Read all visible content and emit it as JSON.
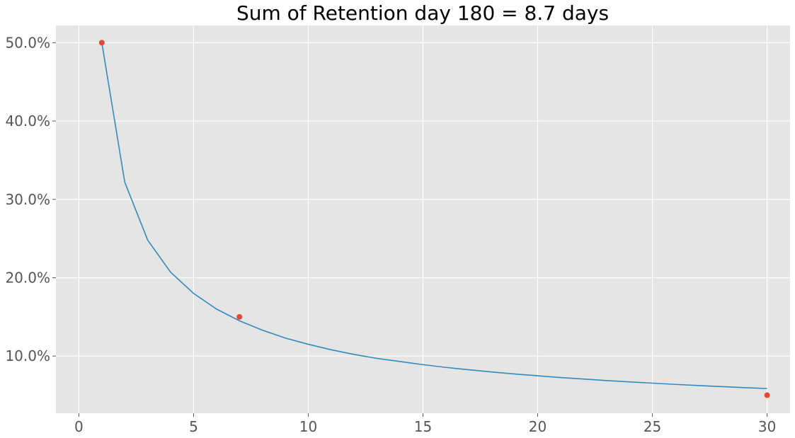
{
  "chart_data": {
    "type": "line",
    "title": "Sum of Retention day 180 = 8.7 days",
    "xlabel": "",
    "ylabel": "",
    "xlim": [
      -1,
      31
    ],
    "ylim": [
      0.027,
      0.522
    ],
    "grid": true,
    "style": "ggplot",
    "colors": {
      "background": "#e5e5e5",
      "grid": "#ffffff",
      "fit_line": "#348abd",
      "observed_points": "#e24a33"
    },
    "x_ticks": [
      0,
      5,
      10,
      15,
      20,
      25,
      30
    ],
    "x_tick_labels": [
      "0",
      "5",
      "10",
      "15",
      "20",
      "25",
      "30"
    ],
    "y_ticks": [
      0.1,
      0.2,
      0.3,
      0.4,
      0.5
    ],
    "y_tick_labels": [
      "10.0%",
      "20.0%",
      "30.0%",
      "40.0%",
      "50.0%"
    ],
    "series": [
      {
        "kind": "line",
        "x": [
          1,
          2,
          3,
          4,
          5,
          6,
          7,
          8,
          9,
          10,
          11,
          12,
          13,
          14,
          15,
          16,
          17,
          18,
          19,
          20,
          21,
          22,
          23,
          24,
          25,
          26,
          27,
          28,
          29,
          30
        ],
        "values": [
          0.5,
          0.322,
          0.248,
          0.207,
          0.18,
          0.16,
          0.145,
          0.133,
          0.123,
          0.115,
          0.108,
          0.102,
          0.097,
          0.093,
          0.089,
          0.0855,
          0.0825,
          0.0797,
          0.0771,
          0.0748,
          0.0726,
          0.0706,
          0.0687,
          0.067,
          0.0654,
          0.0638,
          0.0624,
          0.061,
          0.0597,
          0.0585
        ]
      },
      {
        "kind": "scatter",
        "x": [
          1,
          7,
          30
        ],
        "values": [
          0.5,
          0.15,
          0.05
        ]
      }
    ]
  }
}
